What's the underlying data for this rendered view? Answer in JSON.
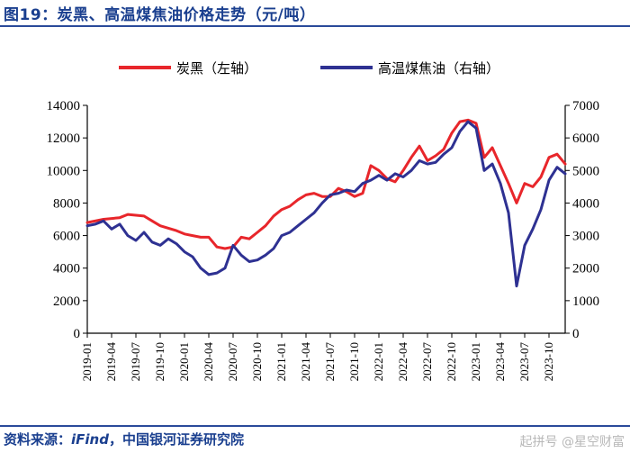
{
  "header": {
    "title": "图19：炭黑、高温煤焦油价格走势（元/吨）"
  },
  "footer": {
    "source_prefix": "资料来源：",
    "source_tool": "iFind",
    "source_suffix": "，中国银河证券研究院",
    "watermark": "起拼号 @星空财富"
  },
  "chart_data": {
    "type": "line",
    "title": "图19：炭黑、高温煤焦油价格走势（元/吨）",
    "x_tick_labels": [
      "2019-01",
      "2019-04",
      "2019-07",
      "2019-10",
      "2020-01",
      "2020-04",
      "2020-07",
      "2020-10",
      "2021-01",
      "2021-04",
      "2021-07",
      "2021-10",
      "2022-01",
      "2022-04",
      "2022-07",
      "2022-10",
      "2023-01",
      "2023-04",
      "2023-07",
      "2023-10"
    ],
    "x_range": [
      "2019-01",
      "2023-12"
    ],
    "left_axis": {
      "ylim": [
        0,
        14000
      ],
      "ticks": [
        0,
        2000,
        4000,
        6000,
        8000,
        10000,
        12000,
        14000
      ]
    },
    "right_axis": {
      "ylim": [
        0,
        7000
      ],
      "ticks": [
        0,
        1000,
        2000,
        3000,
        4000,
        5000,
        6000,
        7000
      ]
    },
    "legend_position": "top",
    "grid": false,
    "series": [
      {
        "name": "炭黑（左轴）",
        "axis": "left",
        "color": "#e8262b",
        "points": [
          [
            "2019-01",
            6800
          ],
          [
            "2019-03",
            7000
          ],
          [
            "2019-05",
            7100
          ],
          [
            "2019-06",
            7300
          ],
          [
            "2019-08",
            7200
          ],
          [
            "2019-09",
            6900
          ],
          [
            "2019-10",
            6600
          ],
          [
            "2019-12",
            6300
          ],
          [
            "2020-01",
            6100
          ],
          [
            "2020-02",
            6000
          ],
          [
            "2020-03",
            5900
          ],
          [
            "2020-04",
            5900
          ],
          [
            "2020-05",
            5300
          ],
          [
            "2020-06",
            5200
          ],
          [
            "2020-07",
            5300
          ],
          [
            "2020-08",
            5900
          ],
          [
            "2020-09",
            5800
          ],
          [
            "2020-10",
            6200
          ],
          [
            "2020-11",
            6600
          ],
          [
            "2020-12",
            7200
          ],
          [
            "2021-01",
            7600
          ],
          [
            "2021-02",
            7800
          ],
          [
            "2021-03",
            8200
          ],
          [
            "2021-04",
            8500
          ],
          [
            "2021-05",
            8600
          ],
          [
            "2021-06",
            8400
          ],
          [
            "2021-07",
            8400
          ],
          [
            "2021-08",
            8900
          ],
          [
            "2021-09",
            8700
          ],
          [
            "2021-10",
            8400
          ],
          [
            "2021-11",
            8600
          ],
          [
            "2021-12",
            10300
          ],
          [
            "2022-01",
            10000
          ],
          [
            "2022-02",
            9500
          ],
          [
            "2022-03",
            9300
          ],
          [
            "2022-04",
            10000
          ],
          [
            "2022-05",
            10800
          ],
          [
            "2022-06",
            11500
          ],
          [
            "2022-07",
            10600
          ],
          [
            "2022-08",
            10900
          ],
          [
            "2022-09",
            11300
          ],
          [
            "2022-10",
            12300
          ],
          [
            "2022-11",
            13000
          ],
          [
            "2022-12",
            13100
          ],
          [
            "2023-01",
            12900
          ],
          [
            "2023-02",
            10800
          ],
          [
            "2023-03",
            11400
          ],
          [
            "2023-04",
            10300
          ],
          [
            "2023-05",
            9200
          ],
          [
            "2023-06",
            8000
          ],
          [
            "2023-07",
            9200
          ],
          [
            "2023-08",
            9000
          ],
          [
            "2023-09",
            9600
          ],
          [
            "2023-10",
            10800
          ],
          [
            "2023-11",
            11000
          ],
          [
            "2023-12",
            10400
          ]
        ]
      },
      {
        "name": "高温煤焦油（右轴）",
        "axis": "right",
        "color": "#2e3192",
        "points": [
          [
            "2019-01",
            3300
          ],
          [
            "2019-02",
            3350
          ],
          [
            "2019-03",
            3450
          ],
          [
            "2019-04",
            3200
          ],
          [
            "2019-05",
            3350
          ],
          [
            "2019-06",
            3000
          ],
          [
            "2019-07",
            2850
          ],
          [
            "2019-08",
            3100
          ],
          [
            "2019-09",
            2800
          ],
          [
            "2019-10",
            2700
          ],
          [
            "2019-11",
            2900
          ],
          [
            "2019-12",
            2750
          ],
          [
            "2020-01",
            2500
          ],
          [
            "2020-02",
            2350
          ],
          [
            "2020-03",
            2000
          ],
          [
            "2020-04",
            1800
          ],
          [
            "2020-05",
            1850
          ],
          [
            "2020-06",
            2000
          ],
          [
            "2020-07",
            2700
          ],
          [
            "2020-08",
            2400
          ],
          [
            "2020-09",
            2200
          ],
          [
            "2020-10",
            2250
          ],
          [
            "2020-11",
            2400
          ],
          [
            "2020-12",
            2600
          ],
          [
            "2021-01",
            3000
          ],
          [
            "2021-02",
            3100
          ],
          [
            "2021-03",
            3300
          ],
          [
            "2021-04",
            3500
          ],
          [
            "2021-05",
            3700
          ],
          [
            "2021-06",
            4000
          ],
          [
            "2021-07",
            4250
          ],
          [
            "2021-08",
            4300
          ],
          [
            "2021-09",
            4400
          ],
          [
            "2021-10",
            4350
          ],
          [
            "2021-11",
            4600
          ],
          [
            "2021-12",
            4700
          ],
          [
            "2022-01",
            4850
          ],
          [
            "2022-02",
            4700
          ],
          [
            "2022-03",
            4900
          ],
          [
            "2022-04",
            4800
          ],
          [
            "2022-05",
            5000
          ],
          [
            "2022-06",
            5300
          ],
          [
            "2022-07",
            5200
          ],
          [
            "2022-08",
            5250
          ],
          [
            "2022-09",
            5500
          ],
          [
            "2022-10",
            5700
          ],
          [
            "2022-11",
            6200
          ],
          [
            "2022-12",
            6500
          ],
          [
            "2023-01",
            6300
          ],
          [
            "2023-02",
            5000
          ],
          [
            "2023-03",
            5200
          ],
          [
            "2023-04",
            4600
          ],
          [
            "2023-05",
            3700
          ],
          [
            "2023-06",
            1450
          ],
          [
            "2023-07",
            2700
          ],
          [
            "2023-08",
            3200
          ],
          [
            "2023-09",
            3800
          ],
          [
            "2023-10",
            4700
          ],
          [
            "2023-11",
            5100
          ],
          [
            "2023-12",
            4900
          ]
        ]
      }
    ]
  }
}
